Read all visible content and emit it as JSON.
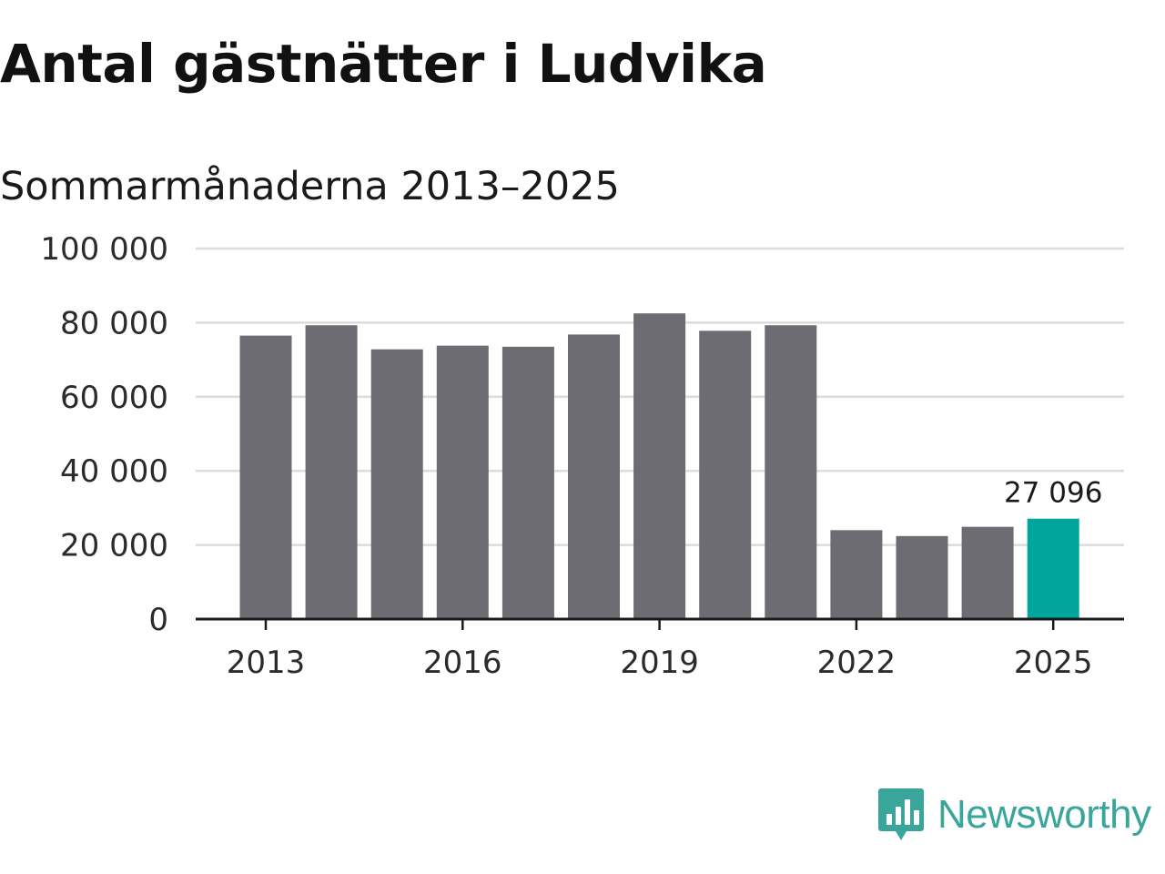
{
  "title": "Antal gästnätter i Ludvika",
  "subtitle": "Sommarmånaderna 2013–2025",
  "brand": {
    "name": "Newsworthy",
    "icon": "newsworthy-logo-icon",
    "color": "#3aa59a"
  },
  "colors": {
    "bar": "#6d6c72",
    "highlight": "#00a59b",
    "grid": "#dcdcdc",
    "axis": "#1a1a1a"
  },
  "chart_data": {
    "type": "bar",
    "title": "Antal gästnätter i Ludvika",
    "subtitle": "Sommarmånaderna 2013–2025",
    "xlabel": "",
    "ylabel": "",
    "categories": [
      "2013",
      "2014",
      "2015",
      "2016",
      "2017",
      "2018",
      "2019",
      "2020",
      "2021",
      "2022",
      "2023",
      "2024",
      "2025"
    ],
    "values": [
      76500,
      79300,
      72800,
      73800,
      73500,
      76800,
      82500,
      77800,
      79300,
      24000,
      22400,
      24900,
      27096
    ],
    "ylim": [
      0,
      100000
    ],
    "yticks": [
      0,
      20000,
      40000,
      60000,
      80000,
      100000
    ],
    "ytick_labels": [
      "0",
      "20 000",
      "40 000",
      "60 000",
      "80 000",
      "100 000"
    ],
    "xtick_labels": [
      "2013",
      "2016",
      "2019",
      "2022",
      "2025"
    ],
    "highlight_index": 12,
    "data_labels": [
      {
        "index": 12,
        "text": "27 096"
      }
    ],
    "grid": true,
    "legend": "none"
  }
}
